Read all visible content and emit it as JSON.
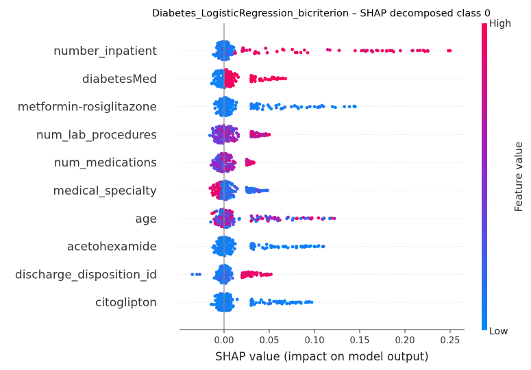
{
  "chart_data": {
    "type": "scatter",
    "subtype": "shap-beeswarm",
    "title": "Diabetes_LogisticRegression_bicriterion – SHAP decomposed class 0",
    "xlabel": "SHAP value (impact on model output)",
    "xlim": [
      -0.05,
      0.265
    ],
    "xticks": [
      0.0,
      0.05,
      0.1,
      0.15,
      0.2,
      0.25
    ],
    "xtick_labels": [
      "0.00",
      "0.05",
      "0.10",
      "0.15",
      "0.20",
      "0.25"
    ],
    "grid": false,
    "colorbar": {
      "label": "Feature value",
      "high_label": "High",
      "low_label": "Low",
      "low_color": "#008bfb",
      "mid_color": "#8a2bd2",
      "high_color": "#ff0052"
    },
    "features": [
      {
        "name": "number_inpatient",
        "min": -0.03,
        "max": 0.25,
        "core": [
          -0.03,
          0.02
        ],
        "tail": [
          0.02,
          0.25
        ],
        "color_mode": "high_right",
        "tail_points": [
          0.145,
          0.152,
          0.157,
          0.163,
          0.17,
          0.175,
          0.18,
          0.186,
          0.195,
          0.208,
          0.225,
          0.248,
          0.25
        ]
      },
      {
        "name": "diabetesMed",
        "min": -0.03,
        "max": 0.068,
        "core": [
          -0.03,
          0.03
        ],
        "tail": [
          0.03,
          0.068
        ],
        "color_mode": "split",
        "tail_points": [
          0.055,
          0.06,
          0.068
        ]
      },
      {
        "name": "metformin-rosiglitazone",
        "min": -0.02,
        "max": 0.145,
        "core": [
          -0.02,
          0.03
        ],
        "tail": [
          0.03,
          0.145
        ],
        "color_mode": "low",
        "tail_points": [
          0.095,
          0.1,
          0.105,
          0.11,
          0.12,
          0.133,
          0.145
        ]
      },
      {
        "name": "num_lab_procedures",
        "min": -0.032,
        "max": 0.05,
        "core": [
          -0.032,
          0.03
        ],
        "tail": [
          0.03,
          0.05
        ],
        "color_mode": "mixed_high_right",
        "tail_points": [
          0.042,
          0.05
        ]
      },
      {
        "name": "num_medications",
        "min": -0.032,
        "max": 0.033,
        "core": [
          -0.032,
          0.025
        ],
        "tail": [
          0.025,
          0.033
        ],
        "color_mode": "mixed_high_right",
        "tail_points": [
          0.03,
          0.033
        ]
      },
      {
        "name": "medical_specialty",
        "min": -0.03,
        "max": 0.048,
        "core": [
          -0.03,
          0.025
        ],
        "tail": [
          0.025,
          0.048
        ],
        "color_mode": "high_left",
        "tail_points": [
          0.037,
          0.04,
          0.044,
          0.048
        ]
      },
      {
        "name": "age",
        "min": -0.025,
        "max": 0.122,
        "core": [
          -0.025,
          0.03
        ],
        "tail": [
          0.03,
          0.122
        ],
        "color_mode": "mixed",
        "tail_points": [
          0.08,
          0.085,
          0.09,
          0.095,
          0.11,
          0.117,
          0.122
        ]
      },
      {
        "name": "acetohexamide",
        "min": -0.023,
        "max": 0.11,
        "core": [
          -0.023,
          0.03
        ],
        "tail": [
          0.03,
          0.11
        ],
        "color_mode": "low",
        "tail_points": [
          0.08,
          0.085,
          0.092,
          0.1,
          0.11
        ]
      },
      {
        "name": "discharge_disposition_id",
        "min": -0.035,
        "max": 0.052,
        "core": [
          -0.02,
          0.02
        ],
        "tail": [
          0.02,
          0.052
        ],
        "color_mode": "high_right",
        "tail_points": [
          -0.035,
          -0.03,
          -0.027,
          0.045,
          0.052
        ]
      },
      {
        "name": "citoglipton",
        "min": -0.02,
        "max": 0.097,
        "core": [
          -0.02,
          0.03
        ],
        "tail": [
          0.03,
          0.097
        ],
        "color_mode": "low",
        "tail_points": [
          0.075,
          0.08,
          0.085,
          0.093,
          0.097
        ]
      }
    ]
  }
}
